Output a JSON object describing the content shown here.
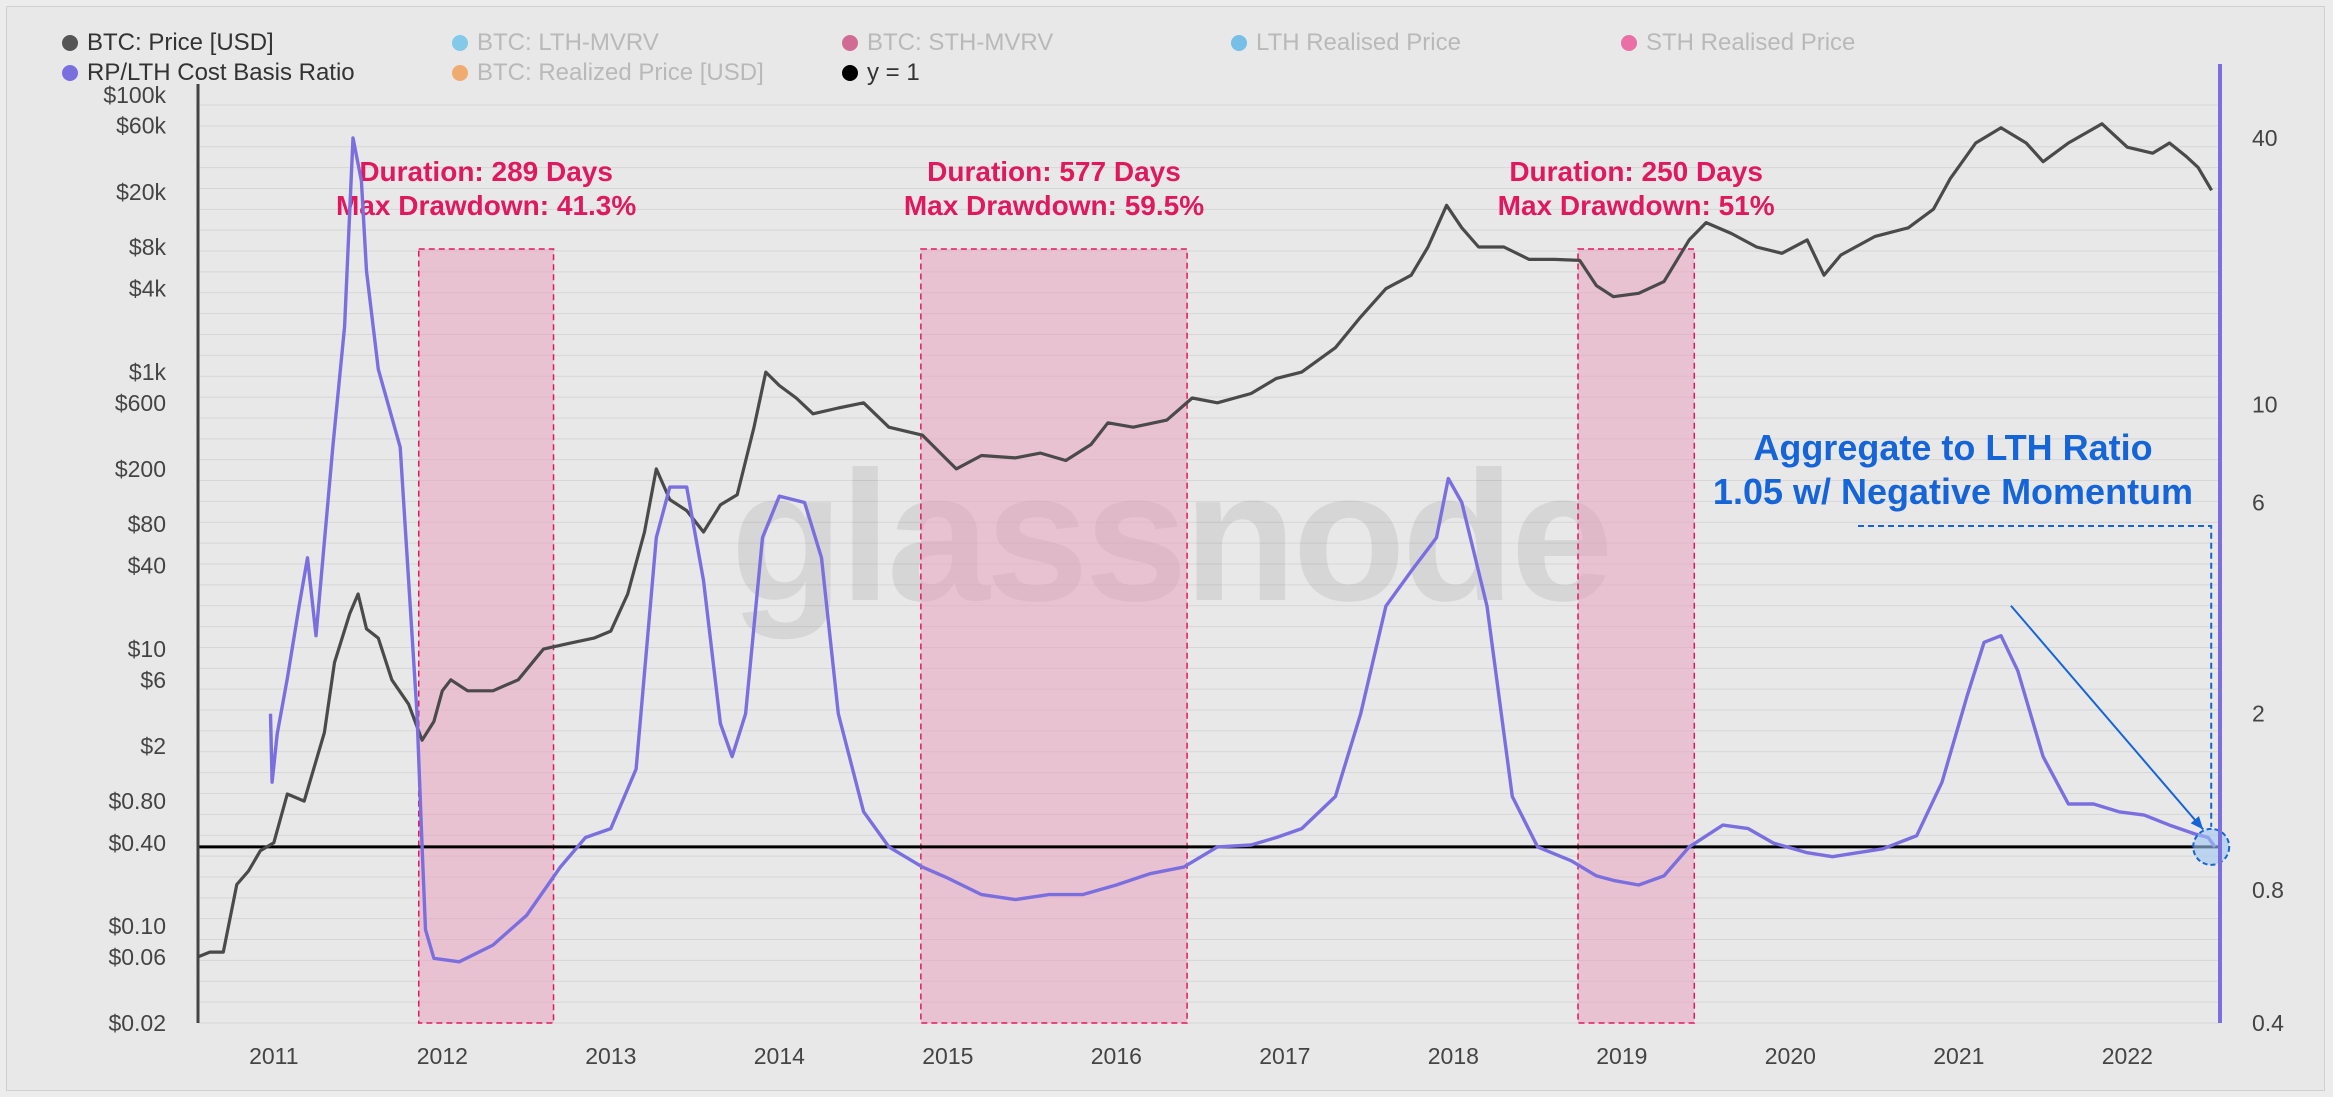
{
  "legend": {
    "items": [
      {
        "label": "BTC: Price [USD]",
        "color": "#555555",
        "active": true
      },
      {
        "label": "BTC: LTH-MVRV",
        "color": "#3fb6e8",
        "active": false
      },
      {
        "label": "BTC: STH-MVRV",
        "color": "#c2185b",
        "active": false
      },
      {
        "label": "LTH Realised Price",
        "color": "#29a3e6",
        "active": false
      },
      {
        "label": "STH Realised Price",
        "color": "#e91e7a",
        "active": false
      },
      {
        "label": "RP/LTH Cost Basis Ratio",
        "color": "#7b6fe0",
        "active": true
      },
      {
        "label": "BTC: Realized Price [USD]",
        "color": "#f5841f",
        "active": false
      },
      {
        "label": "y = 1",
        "color": "#000000",
        "active": true
      }
    ]
  },
  "watermark": "glassnode",
  "colors": {
    "price": "#4a4a4a",
    "ratio": "#7b6fe0",
    "band_fill": "#e9a3be",
    "band_stroke": "#e0195e",
    "annotation_red": "#e0195e",
    "annotation_blue": "#1565d8",
    "baseline": "#000000"
  },
  "chart_data": {
    "type": "line",
    "x_range": [
      2010.55,
      2022.55
    ],
    "left_axis": {
      "scale": "log",
      "range": [
        0.02,
        100000
      ],
      "ticks": [
        {
          "value": 100000,
          "label": "$100k"
        },
        {
          "value": 60000,
          "label": "$60k"
        },
        {
          "value": 20000,
          "label": "$20k"
        },
        {
          "value": 8000,
          "label": "$8k"
        },
        {
          "value": 4000,
          "label": "$4k"
        },
        {
          "value": 1000,
          "label": "$1k"
        },
        {
          "value": 600,
          "label": "$600"
        },
        {
          "value": 200,
          "label": "$200"
        },
        {
          "value": 80,
          "label": "$80"
        },
        {
          "value": 40,
          "label": "$40"
        },
        {
          "value": 10,
          "label": "$10"
        },
        {
          "value": 6,
          "label": "$6"
        },
        {
          "value": 2,
          "label": "$2"
        },
        {
          "value": 0.8,
          "label": "$0.80"
        },
        {
          "value": 0.4,
          "label": "$0.40"
        },
        {
          "value": 0.1,
          "label": "$0.10"
        },
        {
          "value": 0.06,
          "label": "$0.06"
        },
        {
          "value": 0.02,
          "label": "$0.02"
        }
      ]
    },
    "right_axis": {
      "scale": "log",
      "range": [
        0.4,
        50
      ],
      "ticks": [
        {
          "value": 40,
          "label": "40"
        },
        {
          "value": 10,
          "label": "10"
        },
        {
          "value": 6,
          "label": "6"
        },
        {
          "value": 2,
          "label": "2"
        },
        {
          "value": 0.8,
          "label": "0.8"
        },
        {
          "value": 0.4,
          "label": "0.4"
        }
      ]
    },
    "x_ticks": [
      "2011",
      "2012",
      "2013",
      "2014",
      "2015",
      "2016",
      "2017",
      "2018",
      "2019",
      "2020",
      "2021",
      "2022"
    ],
    "grid": true,
    "series": [
      {
        "name": "BTC: Price [USD]",
        "axis": "left",
        "points": [
          [
            2010.55,
            0.06
          ],
          [
            2010.62,
            0.065
          ],
          [
            2010.7,
            0.065
          ],
          [
            2010.78,
            0.2
          ],
          [
            2010.85,
            0.25
          ],
          [
            2010.92,
            0.35
          ],
          [
            2011.0,
            0.4
          ],
          [
            2011.08,
            0.9
          ],
          [
            2011.18,
            0.8
          ],
          [
            2011.3,
            2.5
          ],
          [
            2011.36,
            8
          ],
          [
            2011.45,
            18
          ],
          [
            2011.5,
            25
          ],
          [
            2011.55,
            14
          ],
          [
            2011.62,
            12
          ],
          [
            2011.7,
            6
          ],
          [
            2011.8,
            4
          ],
          [
            2011.88,
            2.2
          ],
          [
            2011.95,
            3
          ],
          [
            2012.0,
            5
          ],
          [
            2012.05,
            6
          ],
          [
            2012.15,
            5
          ],
          [
            2012.3,
            5
          ],
          [
            2012.45,
            6
          ],
          [
            2012.6,
            10
          ],
          [
            2012.75,
            11
          ],
          [
            2012.9,
            12
          ],
          [
            2013.0,
            13.5
          ],
          [
            2013.1,
            25
          ],
          [
            2013.2,
            70
          ],
          [
            2013.27,
            200
          ],
          [
            2013.35,
            120
          ],
          [
            2013.45,
            100
          ],
          [
            2013.55,
            70
          ],
          [
            2013.65,
            110
          ],
          [
            2013.75,
            130
          ],
          [
            2013.85,
            400
          ],
          [
            2013.92,
            1000
          ],
          [
            2014.0,
            800
          ],
          [
            2014.1,
            650
          ],
          [
            2014.2,
            500
          ],
          [
            2014.35,
            550
          ],
          [
            2014.5,
            600
          ],
          [
            2014.65,
            400
          ],
          [
            2014.85,
            350
          ],
          [
            2015.0,
            230
          ],
          [
            2015.05,
            200
          ],
          [
            2015.2,
            250
          ],
          [
            2015.4,
            240
          ],
          [
            2015.55,
            260
          ],
          [
            2015.7,
            230
          ],
          [
            2015.85,
            300
          ],
          [
            2015.95,
            430
          ],
          [
            2016.1,
            400
          ],
          [
            2016.3,
            450
          ],
          [
            2016.45,
            650
          ],
          [
            2016.6,
            600
          ],
          [
            2016.8,
            700
          ],
          [
            2016.95,
            900
          ],
          [
            2017.1,
            1000
          ],
          [
            2017.3,
            1500
          ],
          [
            2017.45,
            2500
          ],
          [
            2017.6,
            4000
          ],
          [
            2017.75,
            5000
          ],
          [
            2017.85,
            8000
          ],
          [
            2017.96,
            16000
          ],
          [
            2018.05,
            11000
          ],
          [
            2018.15,
            8000
          ],
          [
            2018.3,
            8000
          ],
          [
            2018.45,
            6500
          ],
          [
            2018.6,
            6500
          ],
          [
            2018.75,
            6400
          ],
          [
            2018.85,
            4200
          ],
          [
            2018.95,
            3500
          ],
          [
            2019.1,
            3700
          ],
          [
            2019.25,
            4500
          ],
          [
            2019.4,
            9000
          ],
          [
            2019.5,
            12000
          ],
          [
            2019.65,
            10000
          ],
          [
            2019.8,
            8000
          ],
          [
            2019.95,
            7200
          ],
          [
            2020.1,
            9000
          ],
          [
            2020.2,
            5000
          ],
          [
            2020.3,
            7000
          ],
          [
            2020.5,
            9500
          ],
          [
            2020.7,
            11000
          ],
          [
            2020.85,
            15000
          ],
          [
            2020.95,
            25000
          ],
          [
            2021.1,
            45000
          ],
          [
            2021.25,
            58000
          ],
          [
            2021.4,
            45000
          ],
          [
            2021.5,
            33000
          ],
          [
            2021.65,
            45000
          ],
          [
            2021.85,
            62000
          ],
          [
            2022.0,
            42000
          ],
          [
            2022.15,
            38000
          ],
          [
            2022.25,
            45000
          ],
          [
            2022.35,
            36000
          ],
          [
            2022.42,
            30000
          ],
          [
            2022.5,
            20500
          ]
        ]
      },
      {
        "name": "RP/LTH Cost Basis Ratio",
        "axis": "right",
        "points": [
          [
            2010.98,
            2.0
          ],
          [
            2010.99,
            1.4
          ],
          [
            2011.02,
            1.8
          ],
          [
            2011.08,
            2.4
          ],
          [
            2011.15,
            3.5
          ],
          [
            2011.2,
            4.5
          ],
          [
            2011.25,
            3.0
          ],
          [
            2011.35,
            8
          ],
          [
            2011.42,
            15
          ],
          [
            2011.47,
            40
          ],
          [
            2011.52,
            32
          ],
          [
            2011.55,
            20
          ],
          [
            2011.62,
            12
          ],
          [
            2011.75,
            8
          ],
          [
            2011.85,
            2
          ],
          [
            2011.88,
            1.0
          ],
          [
            2011.9,
            0.65
          ],
          [
            2011.95,
            0.56
          ],
          [
            2012.1,
            0.55
          ],
          [
            2012.3,
            0.6
          ],
          [
            2012.5,
            0.7
          ],
          [
            2012.7,
            0.9
          ],
          [
            2012.85,
            1.05
          ],
          [
            2013.0,
            1.1
          ],
          [
            2013.15,
            1.5
          ],
          [
            2013.27,
            5
          ],
          [
            2013.35,
            6.5
          ],
          [
            2013.45,
            6.5
          ],
          [
            2013.55,
            4.0
          ],
          [
            2013.65,
            1.9
          ],
          [
            2013.72,
            1.6
          ],
          [
            2013.8,
            2.0
          ],
          [
            2013.9,
            5
          ],
          [
            2014.0,
            6.2
          ],
          [
            2014.15,
            6.0
          ],
          [
            2014.25,
            4.5
          ],
          [
            2014.35,
            2.0
          ],
          [
            2014.5,
            1.2
          ],
          [
            2014.65,
            1.0
          ],
          [
            2014.85,
            0.9
          ],
          [
            2015.0,
            0.85
          ],
          [
            2015.2,
            0.78
          ],
          [
            2015.4,
            0.76
          ],
          [
            2015.6,
            0.78
          ],
          [
            2015.8,
            0.78
          ],
          [
            2016.0,
            0.82
          ],
          [
            2016.2,
            0.87
          ],
          [
            2016.4,
            0.9
          ],
          [
            2016.6,
            1.0
          ],
          [
            2016.8,
            1.01
          ],
          [
            2016.95,
            1.05
          ],
          [
            2017.1,
            1.1
          ],
          [
            2017.3,
            1.3
          ],
          [
            2017.45,
            2.0
          ],
          [
            2017.6,
            3.5
          ],
          [
            2017.75,
            4.2
          ],
          [
            2017.9,
            5.0
          ],
          [
            2017.97,
            6.8
          ],
          [
            2018.05,
            6.0
          ],
          [
            2018.2,
            3.5
          ],
          [
            2018.35,
            1.3
          ],
          [
            2018.5,
            1.0
          ],
          [
            2018.7,
            0.93
          ],
          [
            2018.85,
            0.86
          ],
          [
            2018.95,
            0.84
          ],
          [
            2019.1,
            0.82
          ],
          [
            2019.25,
            0.86
          ],
          [
            2019.4,
            1.0
          ],
          [
            2019.6,
            1.12
          ],
          [
            2019.75,
            1.1
          ],
          [
            2019.9,
            1.02
          ],
          [
            2020.1,
            0.97
          ],
          [
            2020.25,
            0.95
          ],
          [
            2020.4,
            0.97
          ],
          [
            2020.55,
            0.99
          ],
          [
            2020.75,
            1.06
          ],
          [
            2020.9,
            1.4
          ],
          [
            2021.05,
            2.2
          ],
          [
            2021.15,
            2.9
          ],
          [
            2021.25,
            3.0
          ],
          [
            2021.35,
            2.5
          ],
          [
            2021.5,
            1.6
          ],
          [
            2021.65,
            1.25
          ],
          [
            2021.8,
            1.25
          ],
          [
            2021.95,
            1.2
          ],
          [
            2022.1,
            1.18
          ],
          [
            2022.25,
            1.12
          ],
          [
            2022.4,
            1.07
          ],
          [
            2022.48,
            1.05
          ],
          [
            2022.52,
            1.0
          ]
        ]
      },
      {
        "name": "y = 1",
        "axis": "right",
        "points": [
          [
            2010.55,
            1
          ],
          [
            2022.55,
            1
          ]
        ]
      }
    ],
    "bands": [
      {
        "x": [
          2011.86,
          2012.66
        ],
        "line1": "Duration: 289 Days",
        "line2": "Max Drawdown: 41.3%"
      },
      {
        "x": [
          2014.84,
          2016.42
        ],
        "line1": "Duration: 577 Days",
        "line2": "Max Drawdown: 59.5%"
      },
      {
        "x": [
          2018.74,
          2019.43
        ],
        "line1": "Duration: 250 Days",
        "line2": "Max Drawdown: 51%"
      }
    ],
    "annotation": {
      "line1": "Aggregate to LTH Ratio",
      "line2": "1.05 w/ Negative Momentum",
      "trend_from": [
        2021.25,
        3.0
      ],
      "trend_to": [
        2022.48,
        1.05
      ]
    }
  }
}
